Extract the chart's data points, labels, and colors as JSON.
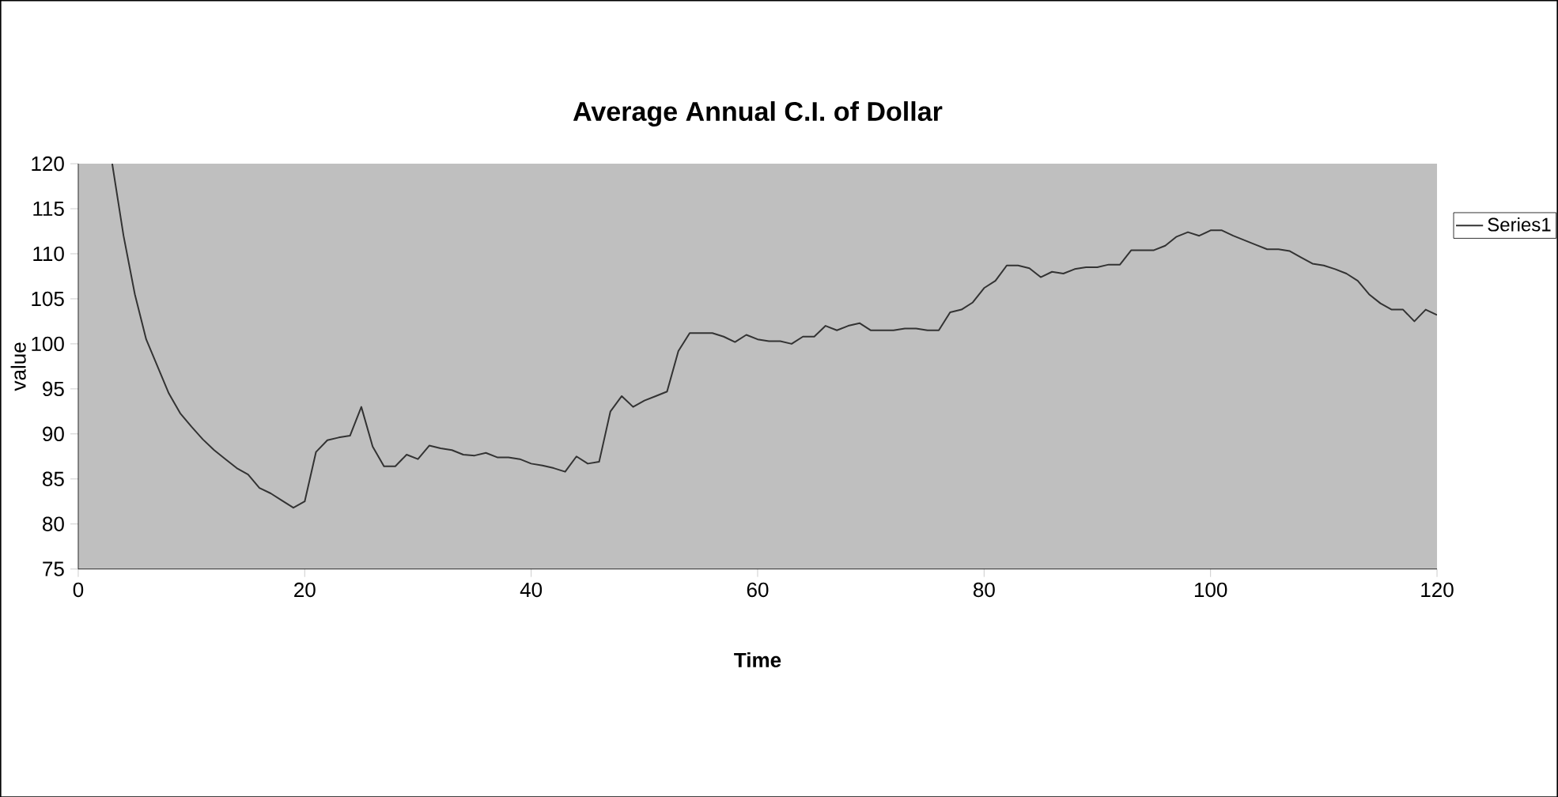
{
  "chart_data": {
    "type": "line",
    "title": "Average Annual C.I. of Dollar",
    "xlabel": "Time",
    "ylabel": "value",
    "x": [
      3,
      4,
      5,
      6,
      7,
      8,
      9,
      10,
      11,
      12,
      13,
      14,
      15,
      16,
      17,
      18,
      19,
      20,
      21,
      22,
      23,
      24,
      25,
      26,
      27,
      28,
      29,
      30,
      31,
      32,
      33,
      34,
      35,
      36,
      37,
      38,
      39,
      40,
      41,
      42,
      43,
      44,
      45,
      46,
      47,
      48,
      49,
      50,
      51,
      52,
      53,
      54,
      55,
      56,
      57,
      58,
      59,
      60,
      61,
      62,
      63,
      64,
      65,
      66,
      67,
      68,
      69,
      70,
      71,
      72,
      73,
      74,
      75,
      76,
      77,
      78,
      79,
      80,
      81,
      82,
      83,
      84,
      85,
      86,
      87,
      88,
      89,
      90,
      91,
      92,
      93,
      94,
      95,
      96,
      97,
      98,
      99,
      100,
      101,
      102,
      103,
      104,
      105,
      106,
      107,
      108,
      109,
      110,
      111,
      112,
      113,
      114,
      115,
      116,
      117,
      118,
      119,
      120
    ],
    "series": [
      {
        "name": "Series1",
        "color": "#333333",
        "values": [
          120,
          112,
          105.5,
          100.5,
          97.5,
          94.5,
          92.3,
          90.8,
          89.4,
          88.2,
          87.2,
          86.2,
          85.5,
          84,
          83.4,
          82.6,
          81.8,
          82.5,
          88,
          89.3,
          89.6,
          89.8,
          93,
          88.6,
          86.4,
          86.4,
          87.7,
          87.2,
          88.7,
          88.4,
          88.2,
          87.7,
          87.6,
          87.9,
          87.4,
          87.4,
          87.2,
          86.7,
          86.5,
          86.2,
          85.8,
          87.5,
          86.7,
          86.9,
          92.5,
          94.2,
          93,
          93.7,
          94.2,
          94.7,
          99.2,
          101.2,
          101.2,
          101.2,
          100.8,
          100.2,
          101,
          100.5,
          100.3,
          100.3,
          100,
          100.8,
          100.8,
          102,
          101.5,
          102,
          102.3,
          101.5,
          101.5,
          101.5,
          101.7,
          101.7,
          101.5,
          101.5,
          103.5,
          103.8,
          104.6,
          106.2,
          107,
          108.7,
          108.7,
          108.4,
          107.4,
          108,
          107.8,
          108.3,
          108.5,
          108.5,
          108.8,
          108.8,
          110.4,
          110.4,
          110.4,
          110.9,
          111.9,
          112.4,
          112,
          112.6,
          112.6,
          112,
          111.5,
          111,
          110.5,
          110.5,
          110.3,
          109.6,
          108.9,
          108.7,
          108.3,
          107.8,
          107,
          105.5,
          104.5,
          103.8,
          103.8,
          102.5,
          103.8,
          103.2
        ]
      }
    ],
    "xlim": [
      0,
      120
    ],
    "xticks": [
      0,
      20,
      40,
      60,
      80,
      100,
      120
    ],
    "ylim": [
      75,
      120
    ],
    "yticks": [
      75,
      80,
      85,
      90,
      95,
      100,
      105,
      110,
      115,
      120
    ],
    "legend": "top right",
    "marker": "none",
    "line_style": "solid"
  }
}
